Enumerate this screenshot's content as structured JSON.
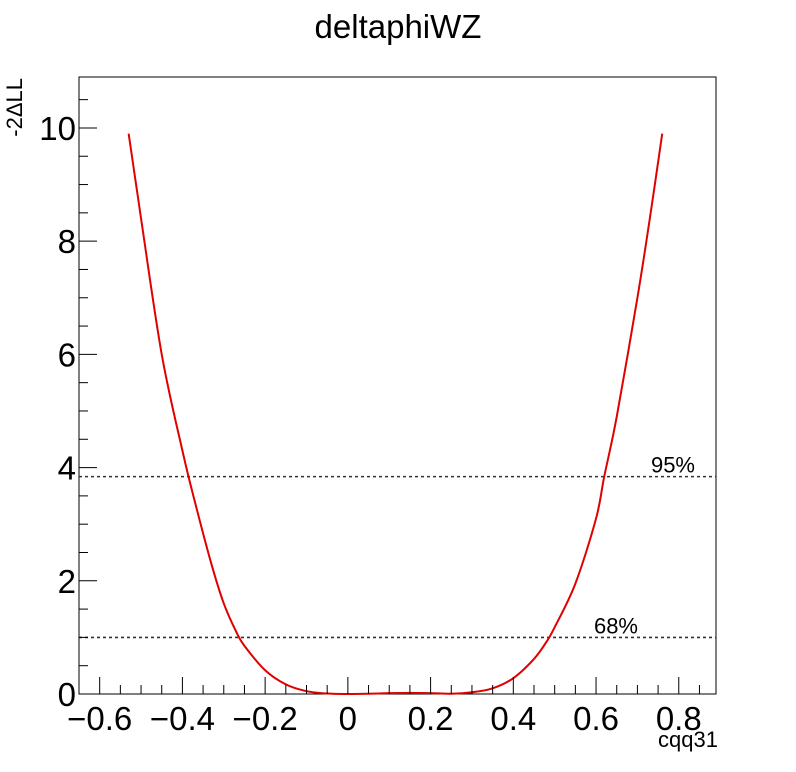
{
  "chart_data": {
    "type": "line",
    "title": "deltaphiWZ",
    "xlabel": "cqq31",
    "ylabel": "-2ΔLL",
    "xlim": [
      -0.65,
      0.89
    ],
    "ylim": [
      0,
      10.9
    ],
    "grid": false,
    "xticks": [
      -0.6,
      -0.4,
      -0.2,
      0,
      0.2,
      0.4,
      0.6,
      0.8
    ],
    "xtick_labels": [
      "−0.6",
      "−0.4",
      "−0.2",
      "0",
      "0.2",
      "0.4",
      "0.6",
      "0.8"
    ],
    "yticks": [
      0,
      2,
      4,
      6,
      8,
      10
    ],
    "ytick_labels": [
      "0",
      "2",
      "4",
      "6",
      "8",
      "10"
    ],
    "series": [
      {
        "color": "#e00000",
        "x": [
          -0.53,
          -0.5,
          -0.45,
          -0.4,
          -0.37,
          -0.33,
          -0.3,
          -0.27,
          -0.25,
          -0.2,
          -0.15,
          -0.1,
          -0.05,
          0,
          0.05,
          0.1,
          0.15,
          0.2,
          0.25,
          0.3,
          0.35,
          0.4,
          0.45,
          0.48,
          0.5,
          0.55,
          0.6,
          0.62,
          0.65,
          0.7,
          0.73,
          0.76
        ],
        "y": [
          9.9,
          8.4,
          6.0,
          4.3,
          3.4,
          2.3,
          1.6,
          1.1,
          0.85,
          0.42,
          0.17,
          0.05,
          0.008,
          0,
          0.005,
          0.015,
          0.02,
          0.015,
          0.005,
          0.03,
          0.1,
          0.28,
          0.62,
          0.92,
          1.18,
          1.95,
          3.1,
          3.85,
          4.9,
          7.0,
          8.4,
          9.9
        ]
      }
    ],
    "reference_lines": [
      {
        "y": 3.84,
        "label": "95%",
        "color": "#333333"
      },
      {
        "y": 1.0,
        "label": "68%",
        "color": "#333333"
      }
    ]
  }
}
